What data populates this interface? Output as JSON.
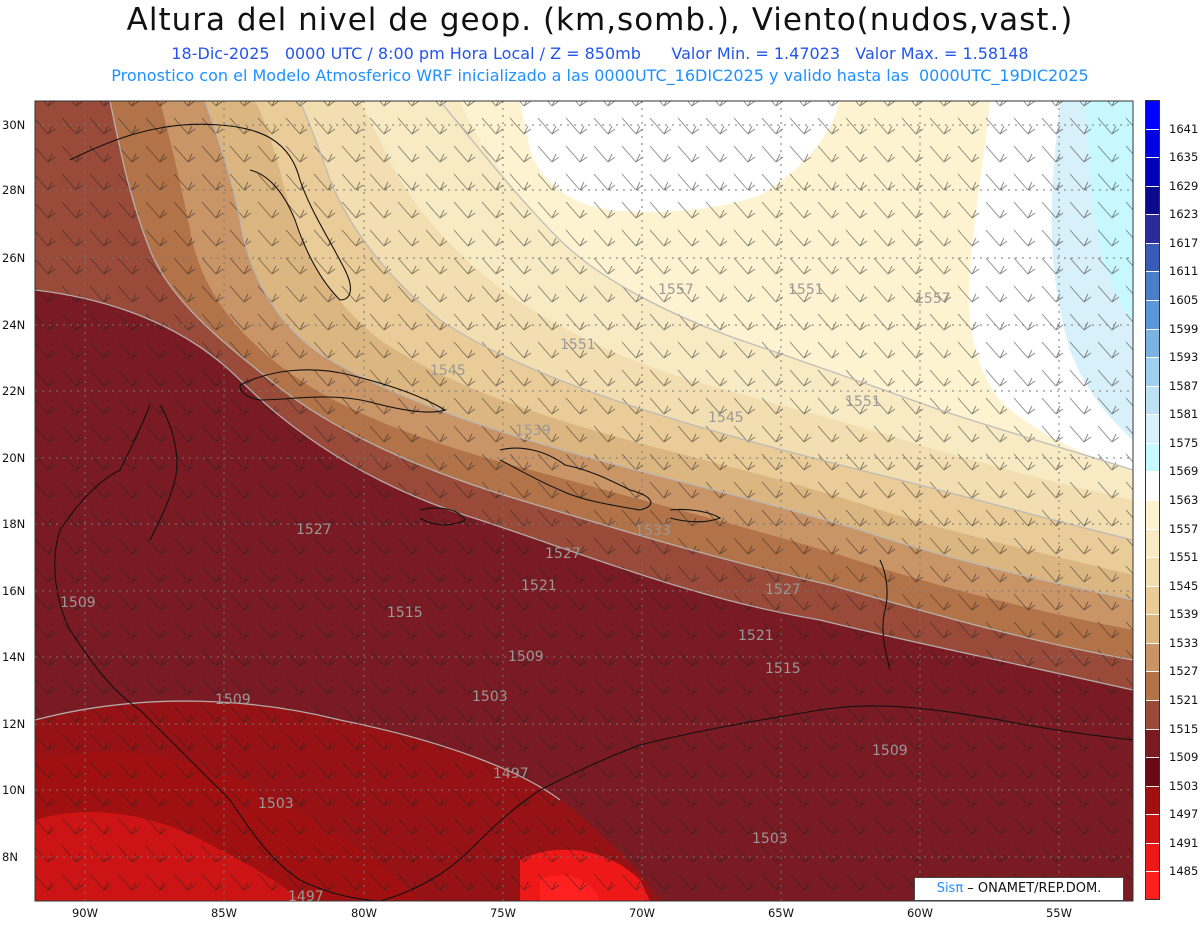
{
  "header": {
    "title": "Altura del nivel de geop. (km,somb.), Viento(nudos,vast.)",
    "subtitle": "18-Dic-2025   0000 UTC / 8:00 pm Hora Local / Z = 850mb      Valor Min. = 1.47023   Valor Max. = 1.58148",
    "model_line": "Pronostico con el Modelo Atmosferico WRF inicializado a las 0000UTC_16DIC2025 y valido hasta las  0000UTC_19DIC2025"
  },
  "axes": {
    "lon_labels": [
      "90W",
      "85W",
      "80W",
      "75W",
      "70W",
      "65W",
      "60W",
      "55W"
    ],
    "lat_labels": [
      "30N",
      "28N",
      "26N",
      "24N",
      "22N",
      "20N",
      "18N",
      "16N",
      "14N",
      "12N",
      "10N",
      "8N"
    ]
  },
  "contour_labels": [
    "1557",
    "1551",
    "1557",
    "1545",
    "1551",
    "1545",
    "1551",
    "1539",
    "1527",
    "1533",
    "1527",
    "1521",
    "1527",
    "1509",
    "1515",
    "1509",
    "1521",
    "1515",
    "1503",
    "1509",
    "1497",
    "1503",
    "1503",
    "1497",
    "1509"
  ],
  "legend": {
    "levels": [
      "1641",
      "1635",
      "1629",
      "1623",
      "1617",
      "1611",
      "1605",
      "1599",
      "1593",
      "1587",
      "1581",
      "1575",
      "1569",
      "1563",
      "1557",
      "1551",
      "1545",
      "1539",
      "1533",
      "1527",
      "1521",
      "1515",
      "1509",
      "1503",
      "1497",
      "1491",
      "1485"
    ],
    "colors": [
      "#0000ff",
      "#0000e0",
      "#0000b8",
      "#0a0a8a",
      "#2a2a9a",
      "#3a5ab8",
      "#4a7ec8",
      "#5a96d8",
      "#7cb2e2",
      "#a0d0ee",
      "#bce2f4",
      "#d8f0fa",
      "#c8f8ff",
      "#ffffff",
      "#fdf3d0",
      "#f8ebc4",
      "#f2deb0",
      "#e9cc98",
      "#dcb680",
      "#c99466",
      "#b37348",
      "#9a4a38",
      "#7a1a22",
      "#6a0a14",
      "#a01010",
      "#cc1414",
      "#ee1818",
      "#ff2020"
    ]
  },
  "credit": {
    "brand": "Sisπ",
    "org": " – ONAMET/REP.DOM."
  }
}
